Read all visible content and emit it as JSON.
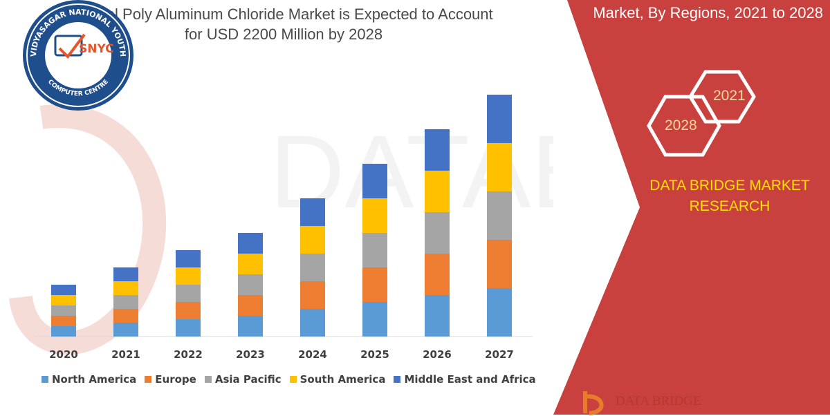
{
  "header": {
    "title_line1": "Global Poly Aluminum Chloride Market is Expected to Account",
    "title_line2": "for USD 2200 Million by 2028",
    "right_title": "Market, By Regions, 2021 to 2028"
  },
  "hexagons": {
    "year_a": "2021",
    "year_b": "2028"
  },
  "brand": {
    "line1": "DATA BRIDGE MARKET",
    "line2": "RESEARCH",
    "footer": "DATA BRIDGE"
  },
  "badge": {
    "ring_text": "VIDYASAGAR NATIONAL YOUTH",
    "bottom_text": "COMPUTER CENTRE",
    "logo_text": "SNYC"
  },
  "watermark": "DATABRIDGE",
  "colors": {
    "north_america": "#5b9bd5",
    "europe": "#ed7d31",
    "asia_pacific": "#a5a5a5",
    "south_america": "#ffc000",
    "middle_east_africa": "#4472c4",
    "panel_red": "#c9413f",
    "brand_yellow": "#ffe100"
  },
  "chart_data": {
    "type": "bar",
    "stacked": true,
    "categories": [
      "2020",
      "2021",
      "2022",
      "2023",
      "2024",
      "2025",
      "2026",
      "2027"
    ],
    "series": [
      {
        "name": "North America",
        "values": [
          15,
          20,
          25,
          30,
          40,
          50,
          60,
          70
        ]
      },
      {
        "name": "Europe",
        "values": [
          15,
          20,
          25,
          30,
          40,
          50,
          60,
          70
        ]
      },
      {
        "name": "Asia Pacific",
        "values": [
          15,
          20,
          25,
          30,
          40,
          50,
          60,
          70
        ]
      },
      {
        "name": "South America",
        "values": [
          15,
          20,
          25,
          30,
          40,
          50,
          60,
          70
        ]
      },
      {
        "name": "Middle East and Africa",
        "values": [
          15,
          20,
          25,
          30,
          40,
          50,
          60,
          70
        ]
      }
    ],
    "ylim": [
      0,
      350
    ],
    "grid": false,
    "legend": "bottom",
    "title": "",
    "xlabel": "",
    "ylabel": ""
  }
}
